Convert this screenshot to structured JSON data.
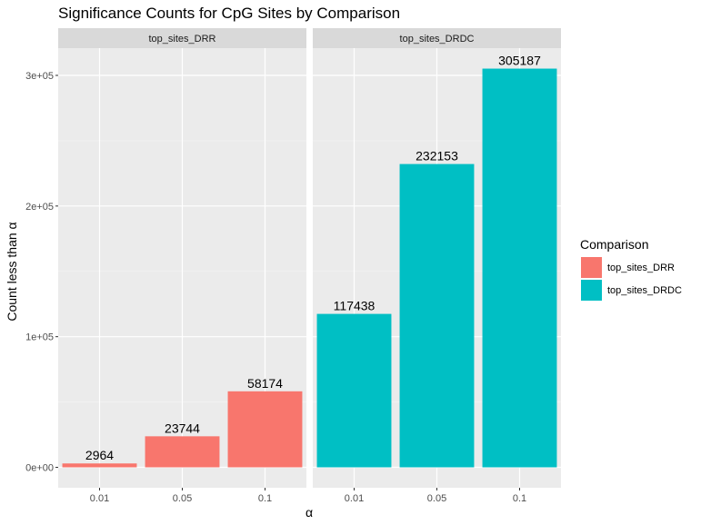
{
  "chart_data": {
    "type": "bar",
    "title": "Significance Counts for CpG Sites by Comparison",
    "xlabel": "α",
    "ylabel": "Count less than α",
    "categories": [
      "0.01",
      "0.05",
      "0.1"
    ],
    "y_ticks": [
      {
        "value": 0,
        "label": "0e+00"
      },
      {
        "value": 100000,
        "label": "1e+05"
      },
      {
        "value": 200000,
        "label": "2e+05"
      },
      {
        "value": 300000,
        "label": "3e+05"
      }
    ],
    "ylim": [
      0,
      320000
    ],
    "grid": true,
    "facets": [
      {
        "name": "top_sites_DRR",
        "color": "#F8766D",
        "values": [
          2964,
          23744,
          58174
        ]
      },
      {
        "name": "top_sites_DRDC",
        "color": "#00BFC4",
        "values": [
          117438,
          232153,
          305187
        ]
      }
    ],
    "legend": {
      "title": "Comparison",
      "position": "right",
      "entries": [
        {
          "label": "top_sites_DRR",
          "color": "#F8766D"
        },
        {
          "label": "top_sites_DRDC",
          "color": "#00BFC4"
        }
      ]
    }
  }
}
